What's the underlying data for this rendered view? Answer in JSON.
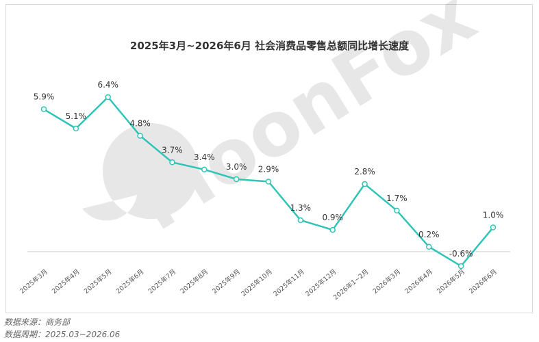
{
  "chart_data": {
    "type": "line",
    "title": "2025年3月~2026年6月 社会消费品零售总额同比增长速度",
    "categories": [
      "2025年3月",
      "2025年4月",
      "2025年5月",
      "2025年6月",
      "2025年7月",
      "2025年8月",
      "2025年9月",
      "2025年10月",
      "2025年11月",
      "2025年12月",
      "2026年1~2月",
      "2026年3月",
      "2026年4月",
      "2026年5月",
      "2026年6月"
    ],
    "series": [
      {
        "values": [
          5.9,
          5.1,
          6.4,
          4.8,
          3.7,
          3.4,
          3.0,
          2.9,
          1.3,
          0.9,
          2.8,
          1.7,
          0.2,
          -0.6,
          1.0
        ]
      }
    ],
    "data_labels": [
      "5.9%",
      "5.1%",
      "6.4%",
      "4.8%",
      "3.7%",
      "3.4%",
      "3.0%",
      "2.9%",
      "1.3%",
      "0.9%",
      "2.8%",
      "1.7%",
      "0.2%",
      "-0.6%",
      "1.0%"
    ],
    "ylim": [
      -1,
      7
    ],
    "grid": false,
    "line_color": "#2EC4B6"
  },
  "footer": {
    "source": "数据来源：商务部",
    "period": "数据周期：2025.03~2026.06"
  },
  "watermark": {
    "text": "MoonFox"
  }
}
